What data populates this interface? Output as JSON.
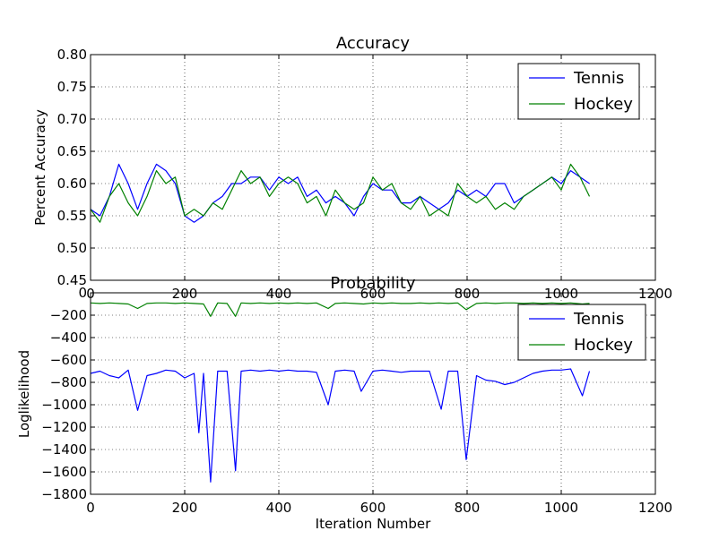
{
  "chart_data": [
    {
      "type": "line",
      "title": "Accuracy",
      "xlabel": "",
      "ylabel": "Percent Accuracy",
      "xlim": [
        0,
        1200
      ],
      "ylim": [
        0.45,
        0.8
      ],
      "xticks": [
        0,
        200,
        400,
        600,
        800,
        1000,
        1200
      ],
      "yticks": [
        0.45,
        0.5,
        0.55,
        0.6,
        0.65,
        0.7,
        0.75,
        0.8
      ],
      "xtick_labels": [
        "0",
        "200",
        "400",
        "600",
        "800",
        "1000",
        "1200"
      ],
      "ytick_labels": [
        "0.45",
        "0.50",
        "0.55",
        "0.60",
        "0.65",
        "0.70",
        "0.75",
        "0.80"
      ],
      "grid": true,
      "legend_position": "top-right",
      "series": [
        {
          "name": "Tennis",
          "color": "#0000ff",
          "x": [
            0,
            20,
            40,
            60,
            80,
            100,
            120,
            140,
            160,
            180,
            200,
            220,
            240,
            260,
            280,
            300,
            320,
            340,
            360,
            380,
            400,
            420,
            440,
            460,
            480,
            500,
            520,
            540,
            560,
            580,
            600,
            620,
            640,
            660,
            680,
            700,
            720,
            740,
            760,
            780,
            800,
            820,
            840,
            860,
            880,
            900,
            920,
            940,
            960,
            980,
            1000,
            1020,
            1040,
            1060
          ],
          "y": [
            0.56,
            0.55,
            0.58,
            0.63,
            0.6,
            0.56,
            0.6,
            0.63,
            0.62,
            0.6,
            0.55,
            0.54,
            0.55,
            0.57,
            0.58,
            0.6,
            0.6,
            0.61,
            0.61,
            0.59,
            0.61,
            0.6,
            0.61,
            0.58,
            0.59,
            0.57,
            0.58,
            0.57,
            0.55,
            0.58,
            0.6,
            0.59,
            0.59,
            0.57,
            0.57,
            0.58,
            0.57,
            0.56,
            0.57,
            0.59,
            0.58,
            0.59,
            0.58,
            0.6,
            0.6,
            0.57,
            0.58,
            0.59,
            0.6,
            0.61,
            0.6,
            0.62,
            0.61,
            0.6
          ]
        },
        {
          "name": "Hockey",
          "color": "#008000",
          "x": [
            0,
            20,
            40,
            60,
            80,
            100,
            120,
            140,
            160,
            180,
            200,
            220,
            240,
            260,
            280,
            300,
            320,
            340,
            360,
            380,
            400,
            420,
            440,
            460,
            480,
            500,
            520,
            540,
            560,
            580,
            600,
            620,
            640,
            660,
            680,
            700,
            720,
            740,
            760,
            780,
            800,
            820,
            840,
            860,
            880,
            900,
            920,
            940,
            960,
            980,
            1000,
            1020,
            1040,
            1060
          ],
          "y": [
            0.56,
            0.54,
            0.58,
            0.6,
            0.57,
            0.55,
            0.58,
            0.62,
            0.6,
            0.61,
            0.55,
            0.56,
            0.55,
            0.57,
            0.56,
            0.59,
            0.62,
            0.6,
            0.61,
            0.58,
            0.6,
            0.61,
            0.6,
            0.57,
            0.58,
            0.55,
            0.59,
            0.57,
            0.56,
            0.57,
            0.61,
            0.59,
            0.6,
            0.57,
            0.56,
            0.58,
            0.55,
            0.56,
            0.55,
            0.6,
            0.58,
            0.57,
            0.58,
            0.56,
            0.57,
            0.56,
            0.58,
            0.59,
            0.6,
            0.61,
            0.59,
            0.63,
            0.61,
            0.58
          ]
        }
      ]
    },
    {
      "type": "line",
      "title": "Probability",
      "xlabel": "Iteration Number",
      "ylabel": "Loglikelihood",
      "xlim": [
        0,
        1200
      ],
      "ylim": [
        -1800,
        0
      ],
      "xticks": [
        0,
        200,
        400,
        600,
        800,
        1000,
        1200
      ],
      "yticks": [
        -1800,
        -1600,
        -1400,
        -1200,
        -1000,
        -800,
        -600,
        -400,
        -200,
        0
      ],
      "xtick_labels": [
        "0",
        "200",
        "400",
        "600",
        "800",
        "1000",
        "1200"
      ],
      "ytick_labels": [
        "−1800",
        "−1600",
        "−1400",
        "−1200",
        "−1000",
        "−800",
        "−600",
        "−400",
        "−200",
        "0"
      ],
      "grid": true,
      "legend_position": "top-right",
      "series": [
        {
          "name": "Tennis",
          "color": "#0000ff",
          "x": [
            0,
            20,
            40,
            60,
            80,
            100,
            120,
            140,
            160,
            180,
            200,
            220,
            230,
            240,
            255,
            270,
            290,
            308,
            320,
            340,
            360,
            380,
            400,
            420,
            440,
            460,
            480,
            505,
            520,
            540,
            560,
            575,
            600,
            620,
            640,
            660,
            680,
            700,
            720,
            745,
            760,
            780,
            798,
            820,
            840,
            860,
            880,
            900,
            920,
            940,
            960,
            980,
            1000,
            1020,
            1045,
            1060
          ],
          "y": [
            -720,
            -700,
            -740,
            -760,
            -690,
            -1050,
            -740,
            -720,
            -690,
            -700,
            -760,
            -720,
            -1250,
            -720,
            -1690,
            -700,
            -700,
            -1590,
            -700,
            -690,
            -700,
            -690,
            -700,
            -690,
            -700,
            -700,
            -710,
            -1000,
            -700,
            -690,
            -700,
            -880,
            -700,
            -690,
            -700,
            -710,
            -700,
            -700,
            -700,
            -1040,
            -700,
            -700,
            -1490,
            -740,
            -780,
            -790,
            -820,
            -800,
            -760,
            -720,
            -700,
            -690,
            -690,
            -680,
            -920,
            -700
          ]
        },
        {
          "name": "Hockey",
          "color": "#008000",
          "x": [
            0,
            20,
            40,
            60,
            80,
            100,
            120,
            140,
            160,
            180,
            200,
            220,
            240,
            255,
            270,
            290,
            308,
            320,
            340,
            360,
            380,
            400,
            420,
            440,
            460,
            480,
            505,
            520,
            540,
            560,
            580,
            600,
            620,
            640,
            660,
            680,
            700,
            720,
            740,
            760,
            780,
            798,
            820,
            840,
            860,
            880,
            900,
            920,
            940,
            960,
            980,
            1000,
            1020,
            1045,
            1060
          ],
          "y": [
            -90,
            -95,
            -90,
            -95,
            -100,
            -140,
            -95,
            -90,
            -90,
            -95,
            -90,
            -95,
            -100,
            -210,
            -90,
            -95,
            -210,
            -90,
            -95,
            -90,
            -95,
            -90,
            -95,
            -90,
            -95,
            -90,
            -140,
            -95,
            -90,
            -95,
            -100,
            -90,
            -95,
            -90,
            -95,
            -95,
            -90,
            -95,
            -90,
            -95,
            -90,
            -150,
            -95,
            -90,
            -95,
            -90,
            -90,
            -95,
            -90,
            -95,
            -90,
            -95,
            -90,
            -100,
            -95
          ]
        }
      ]
    }
  ]
}
